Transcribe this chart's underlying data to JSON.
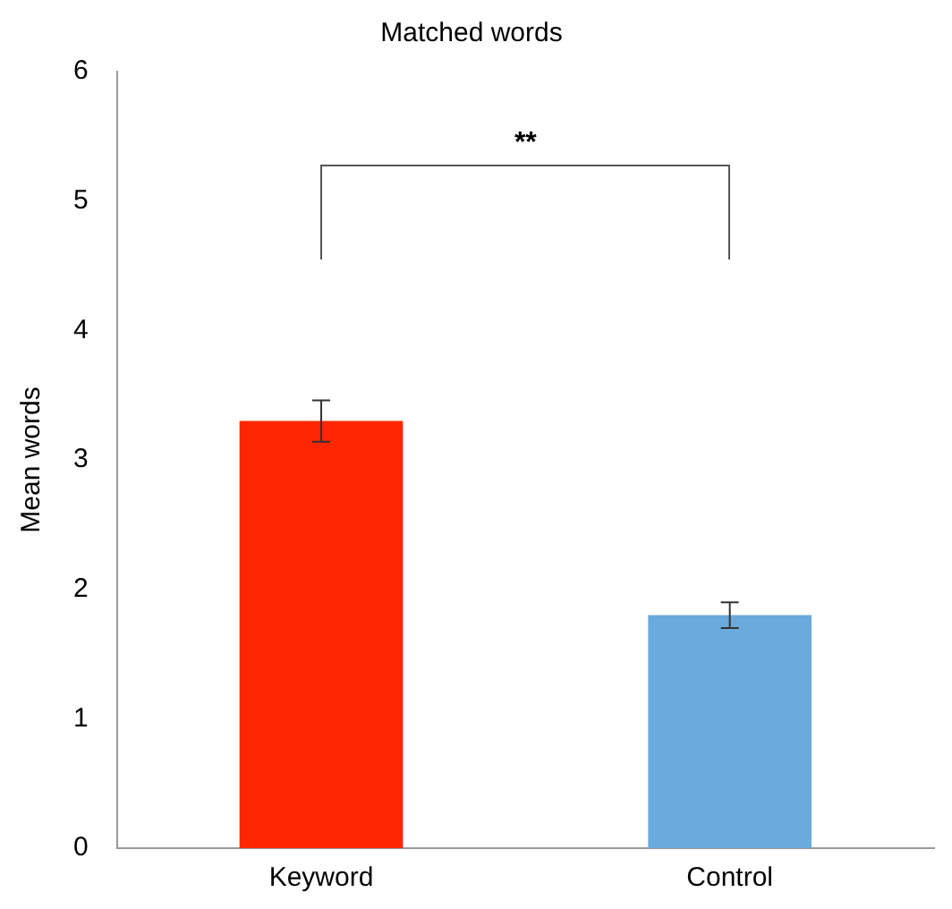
{
  "chart_data": {
    "type": "bar",
    "title": "Matched words",
    "ylabel": "Mean words",
    "categories": [
      "Keyword",
      "Control"
    ],
    "values": [
      3.3,
      1.8
    ],
    "colors": [
      "#ff2600",
      "#6aaadc"
    ],
    "errors": [
      0.16,
      0.1
    ],
    "ylim": [
      0,
      6
    ],
    "yticks": [
      0,
      1,
      2,
      3,
      4,
      5,
      6
    ],
    "grid": false,
    "legend": false,
    "annotations": [
      "**"
    ]
  }
}
